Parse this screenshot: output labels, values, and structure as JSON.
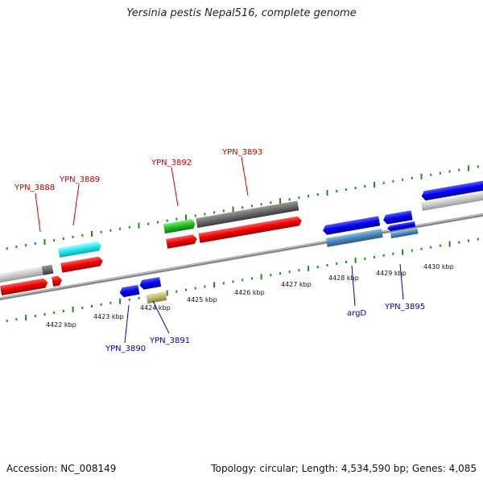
{
  "title": "Yersinia pestis Nepal516, complete genome",
  "footer": {
    "accession": "Accession: NC_008149",
    "summary": "Topology: circular; Length: 4,534,590 bp; Genes: 4,085"
  },
  "colors": {
    "forward_label": "#cc0000",
    "reverse_label": "#0000bb",
    "tick": "#228822",
    "backbone": "#888888"
  },
  "ruler": {
    "labels": [
      "4422 kbp",
      "4423 kbp",
      "4424 kbp",
      "4425 kbp",
      "4426 kbp",
      "4427 kbp",
      "4428 kbp",
      "4429 kbp",
      "4430 kbp"
    ]
  },
  "forward_labels": [
    "YPN_3888",
    "YPN_3889",
    "YPN_3892",
    "YPN_3893"
  ],
  "reverse_labels": [
    "YPN_3890",
    "YPN_3891",
    "argD",
    "YPN_3895"
  ]
}
